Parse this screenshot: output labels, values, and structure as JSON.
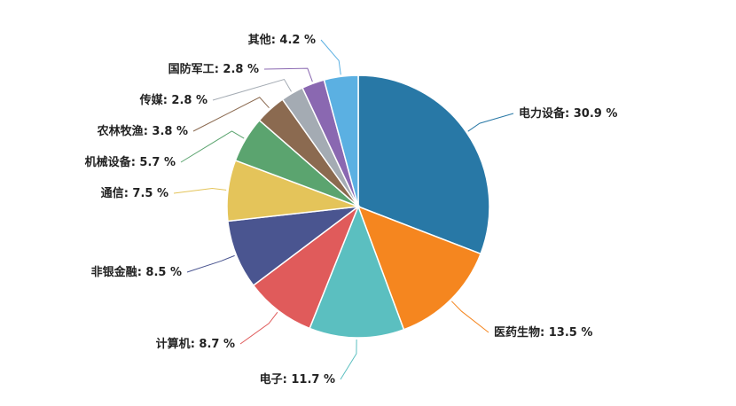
{
  "chart_data": {
    "type": "pie",
    "categories": [
      "电力设备",
      "医药生物",
      "电子",
      "计算机",
      "非银金融",
      "通信",
      "机械设备",
      "农林牧渔",
      "传媒",
      "国防军工",
      "其他"
    ],
    "values": [
      30.9,
      13.5,
      11.7,
      8.7,
      8.5,
      7.5,
      5.7,
      3.8,
      2.8,
      2.8,
      4.2
    ],
    "value_labels": [
      ": 30.9 %",
      ": 13.5 %",
      ": 11.7 %",
      ": 8.7 %",
      ": 8.5 %",
      ": 7.5 %",
      ": 5.7 %",
      ": 3.8 %",
      ": 2.8 %",
      ": 2.8 %",
      ": 4.2 %"
    ],
    "colors": [
      "#2878a6",
      "#f5861f",
      "#5bbfc0",
      "#e05b5b",
      "#4a5590",
      "#e4c45a",
      "#5ba46f",
      "#8b6a50",
      "#a4abb3",
      "#8a68b1",
      "#5bb0e2"
    ]
  }
}
